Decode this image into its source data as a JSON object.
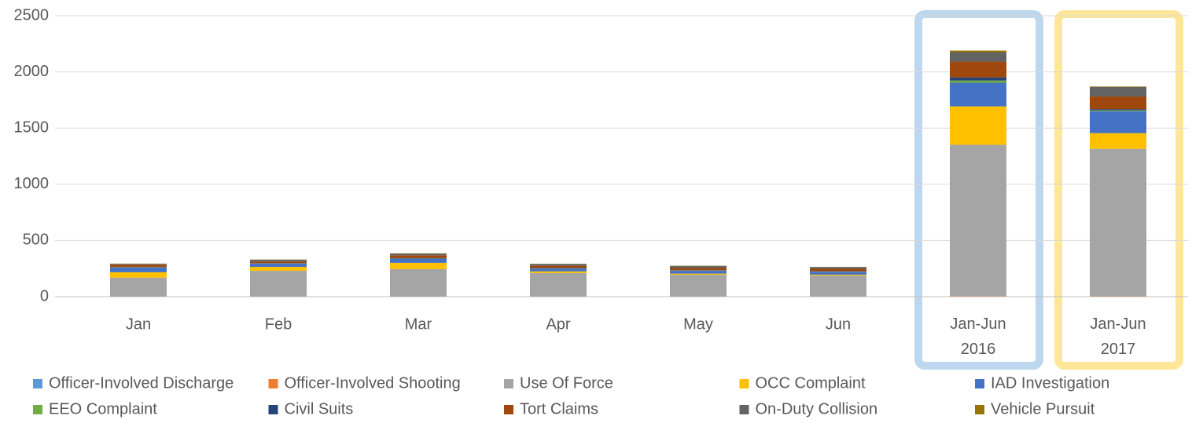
{
  "chart_data": {
    "type": "stacked_bar",
    "categories": [
      "Jan",
      "Feb",
      "Mar",
      "Apr",
      "May",
      "Jun",
      "Jan-Jun 2016",
      "Jan-Jun 2017"
    ],
    "ylim": [
      0,
      2500
    ],
    "yticks": [
      0,
      500,
      1000,
      1500,
      2000,
      2500
    ],
    "grid": true,
    "legend": "bottom",
    "series": [
      {
        "name": "Officer-Involved Discharge",
        "color": "#5b9bd5",
        "values": [
          0,
          0,
          0,
          0,
          0,
          0,
          1,
          1
        ]
      },
      {
        "name": "Officer-Involved Shooting",
        "color": "#ed7d31",
        "values": [
          1,
          0,
          1,
          0,
          0,
          0,
          3,
          2
        ]
      },
      {
        "name": "Use Of Force",
        "color": "#a5a5a5",
        "values": [
          168,
          230,
          244,
          210,
          195,
          188,
          1347,
          1312
        ]
      },
      {
        "name": "OCC Complaint",
        "color": "#ffc000",
        "values": [
          48,
          35,
          56,
          15,
          10,
          8,
          342,
          140
        ]
      },
      {
        "name": "IAD Investigation",
        "color": "#4472c4",
        "values": [
          42,
          28,
          35,
          25,
          25,
          25,
          210,
          195
        ]
      },
      {
        "name": "EEO Complaint",
        "color": "#70ad47",
        "values": [
          2,
          2,
          2,
          2,
          2,
          2,
          20,
          8
        ]
      },
      {
        "name": "Civil Suits",
        "color": "#264478",
        "values": [
          3,
          3,
          5,
          3,
          3,
          3,
          28,
          10
        ]
      },
      {
        "name": "Tort Claims",
        "color": "#9e480e",
        "values": [
          20,
          15,
          25,
          20,
          20,
          22,
          140,
          113
        ]
      },
      {
        "name": "On-Duty Collision",
        "color": "#636363",
        "values": [
          8,
          15,
          15,
          15,
          17,
          15,
          84,
          84
        ]
      },
      {
        "name": "Vehicle Pursuit",
        "color": "#997300",
        "values": [
          2,
          2,
          3,
          2,
          3,
          2,
          14,
          5
        ]
      }
    ]
  }
}
